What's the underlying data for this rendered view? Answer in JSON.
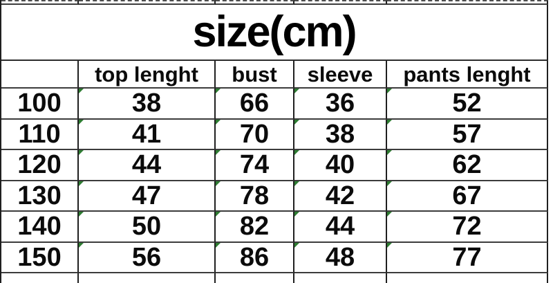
{
  "chart_data": {
    "type": "table",
    "title": "size(cm)",
    "columns": [
      "",
      "top lenght",
      "bust",
      "sleeve",
      "pants lenght"
    ],
    "rows": [
      [
        "100",
        "38",
        "66",
        "36",
        "52"
      ],
      [
        "110",
        "41",
        "70",
        "38",
        "57"
      ],
      [
        "120",
        "44",
        "74",
        "40",
        "62"
      ],
      [
        "130",
        "47",
        "78",
        "42",
        "67"
      ],
      [
        "140",
        "50",
        "82",
        "44",
        "72"
      ],
      [
        "150",
        "56",
        "86",
        "48",
        "77"
      ]
    ],
    "layout_hints": {
      "title_row_spans_all_columns": true,
      "partial_grid_rows_cropped_top_and_bottom": true
    }
  },
  "colors": {
    "background": "#ffffff",
    "text": "#0b0b0b",
    "grid_vertical": "#1f1f1f",
    "grid_horizontal": "#3c3c3c",
    "error_indicator_green": "#2e7d32"
  },
  "icons": {
    "error_indicator": "excel-green-corner-triangle"
  }
}
